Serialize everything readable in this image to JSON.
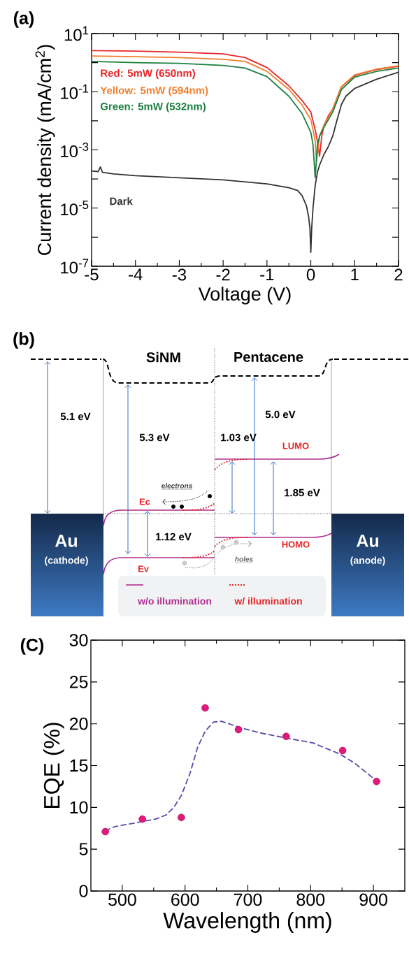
{
  "chart_data": [
    {
      "type": "line",
      "title": "(a)",
      "xlabel": "Voltage (V)",
      "ylabel": "Current density (mA/cm$^{2}$)",
      "log": "y",
      "grid": false,
      "marker": "none",
      "xlim": [
        -5,
        2
      ],
      "ylim": [
        1e-07,
        10
      ],
      "xticks": [
        -5,
        -4,
        -3,
        -2,
        -1,
        0,
        1,
        2
      ],
      "yticks": [
        {
          "value": 10,
          "label": "10$^{1}$"
        },
        {
          "value": 1,
          "label": null
        },
        {
          "value": 0.1,
          "label": "10$^{-1}$"
        },
        {
          "value": 0.01,
          "label": null
        },
        {
          "value": 0.001,
          "label": "10$^{-3}$"
        },
        {
          "value": 0.0001,
          "label": null
        },
        {
          "value": 1e-05,
          "label": "10$^{-5}$"
        },
        {
          "value": 1e-06,
          "label": null
        },
        {
          "value": 1e-07,
          "label": "10$^{-7}$"
        }
      ],
      "series": [
        {
          "name": "Red: 5mW (650nm)",
          "color": "#e8262a",
          "x": [
            -5,
            -4,
            -3,
            -2,
            -1.5,
            -1,
            -0.5,
            -0.2,
            0,
            0.1,
            0.15,
            0.2,
            0.25,
            0.3,
            0.4,
            0.5,
            0.7,
            1,
            1.5,
            2
          ],
          "values": [
            2.6,
            2.5,
            2.3,
            2.0,
            1.5,
            0.68,
            0.16,
            0.05,
            0.02,
            0.005,
            0.002,
            0.0006,
            0.003,
            0.007,
            0.015,
            0.025,
            0.15,
            0.36,
            0.58,
            0.75
          ]
        },
        {
          "name": "Yellow: 5mW (594nm)",
          "color": "#f07f2e",
          "x": [
            -5,
            -4,
            -3,
            -2,
            -1.5,
            -1,
            -0.5,
            -0.2,
            0,
            0.05,
            0.1,
            0.13,
            0.2,
            0.3,
            0.5,
            0.7,
            1,
            1.5,
            2
          ],
          "values": [
            1.7,
            1.6,
            1.5,
            1.3,
            1.1,
            0.5,
            0.12,
            0.035,
            0.011,
            0.005,
            0.002,
            0.0004,
            0.003,
            0.007,
            0.025,
            0.15,
            0.38,
            0.6,
            0.78
          ]
        },
        {
          "name": "Green: 5mW (532nm)",
          "color": "#1a8040",
          "x": [
            -5,
            -4,
            -3,
            -2,
            -1.5,
            -1,
            -0.5,
            -0.2,
            0,
            0.05,
            0.1,
            0.15,
            0.2,
            0.3,
            0.5,
            0.7,
            1,
            1.5,
            2
          ],
          "values": [
            1.1,
            1.0,
            0.95,
            0.8,
            0.65,
            0.33,
            0.07,
            0.018,
            0.004,
            0.0015,
            0.00011,
            0.0015,
            0.003,
            0.006,
            0.02,
            0.12,
            0.32,
            0.5,
            0.65
          ]
        },
        {
          "name": "Dark",
          "color": "#333333",
          "x": [
            -5,
            -4.85,
            -4.8,
            -4.75,
            -4.5,
            -4,
            -3,
            -2,
            -1,
            -0.5,
            -0.3,
            -0.2,
            -0.1,
            -0.05,
            -0.02,
            0,
            0.02,
            0.05,
            0.1,
            0.15,
            0.2,
            0.3,
            0.4,
            0.5,
            0.6,
            0.7,
            0.8,
            1,
            1.5,
            2
          ],
          "values": [
            0.00019,
            0.00018,
            0.00026,
            0.00017,
            0.00015,
            0.00013,
            0.00011,
            9.3e-05,
            6.8e-05,
            5e-05,
            4e-05,
            2.7e-05,
            1.2e-05,
            5e-06,
            2e-06,
            3e-07,
            2e-06,
            1e-05,
            6e-05,
            0.00017,
            0.0003,
            0.0007,
            0.0013,
            0.003,
            0.011,
            0.037,
            0.07,
            0.13,
            0.27,
            0.47
          ]
        }
      ]
    },
    {
      "type": "other",
      "title": "(b)",
      "annotations": [
        "SiNM",
        "Pentacene",
        "5.1 eV",
        "5.3 eV",
        "5.0 eV",
        "1.03 eV",
        "LUMO",
        "electrons",
        "Ec",
        "1.85 eV",
        "1.12 eV",
        "HOMO",
        "holes",
        "Ev",
        "Au",
        "(cathode)",
        "Au",
        "(anode)",
        "w/o illumination",
        "w/ illumination"
      ]
    },
    {
      "type": "scatter",
      "title": "(C)",
      "xlabel": "Wavelength (nm)",
      "ylabel": "EQE (%)",
      "grid": false,
      "xlim": [
        450,
        950
      ],
      "ylim": [
        0,
        30
      ],
      "xticks": [
        500,
        600,
        700,
        800,
        900
      ],
      "yticks": [
        0,
        5,
        10,
        15,
        20,
        25,
        30
      ],
      "series": [
        {
          "type": "line",
          "color": "#5b4ba6",
          "line_style": "dashed",
          "marker": "none",
          "x": [
            473,
            488,
            532,
            553,
            570,
            582,
            594,
            608,
            620,
            632,
            645,
            658,
            670,
            685,
            720,
            761,
            804,
            846,
            870,
            903
          ],
          "values": [
            7.2,
            7.7,
            8.3,
            8.6,
            9.1,
            10.0,
            11.4,
            14.1,
            17.2,
            19.1,
            20.2,
            20.3,
            20.0,
            19.6,
            18.9,
            18.3,
            17.7,
            16.4,
            15.3,
            13.3
          ]
        },
        {
          "type": "scatter",
          "color": "#e0197a",
          "marker": "circle",
          "x": [
            473,
            532,
            594,
            632,
            685,
            761,
            851,
            905
          ],
          "values": [
            7.1,
            8.6,
            8.8,
            21.9,
            19.3,
            18.5,
            16.8,
            13.1
          ]
        }
      ]
    }
  ]
}
